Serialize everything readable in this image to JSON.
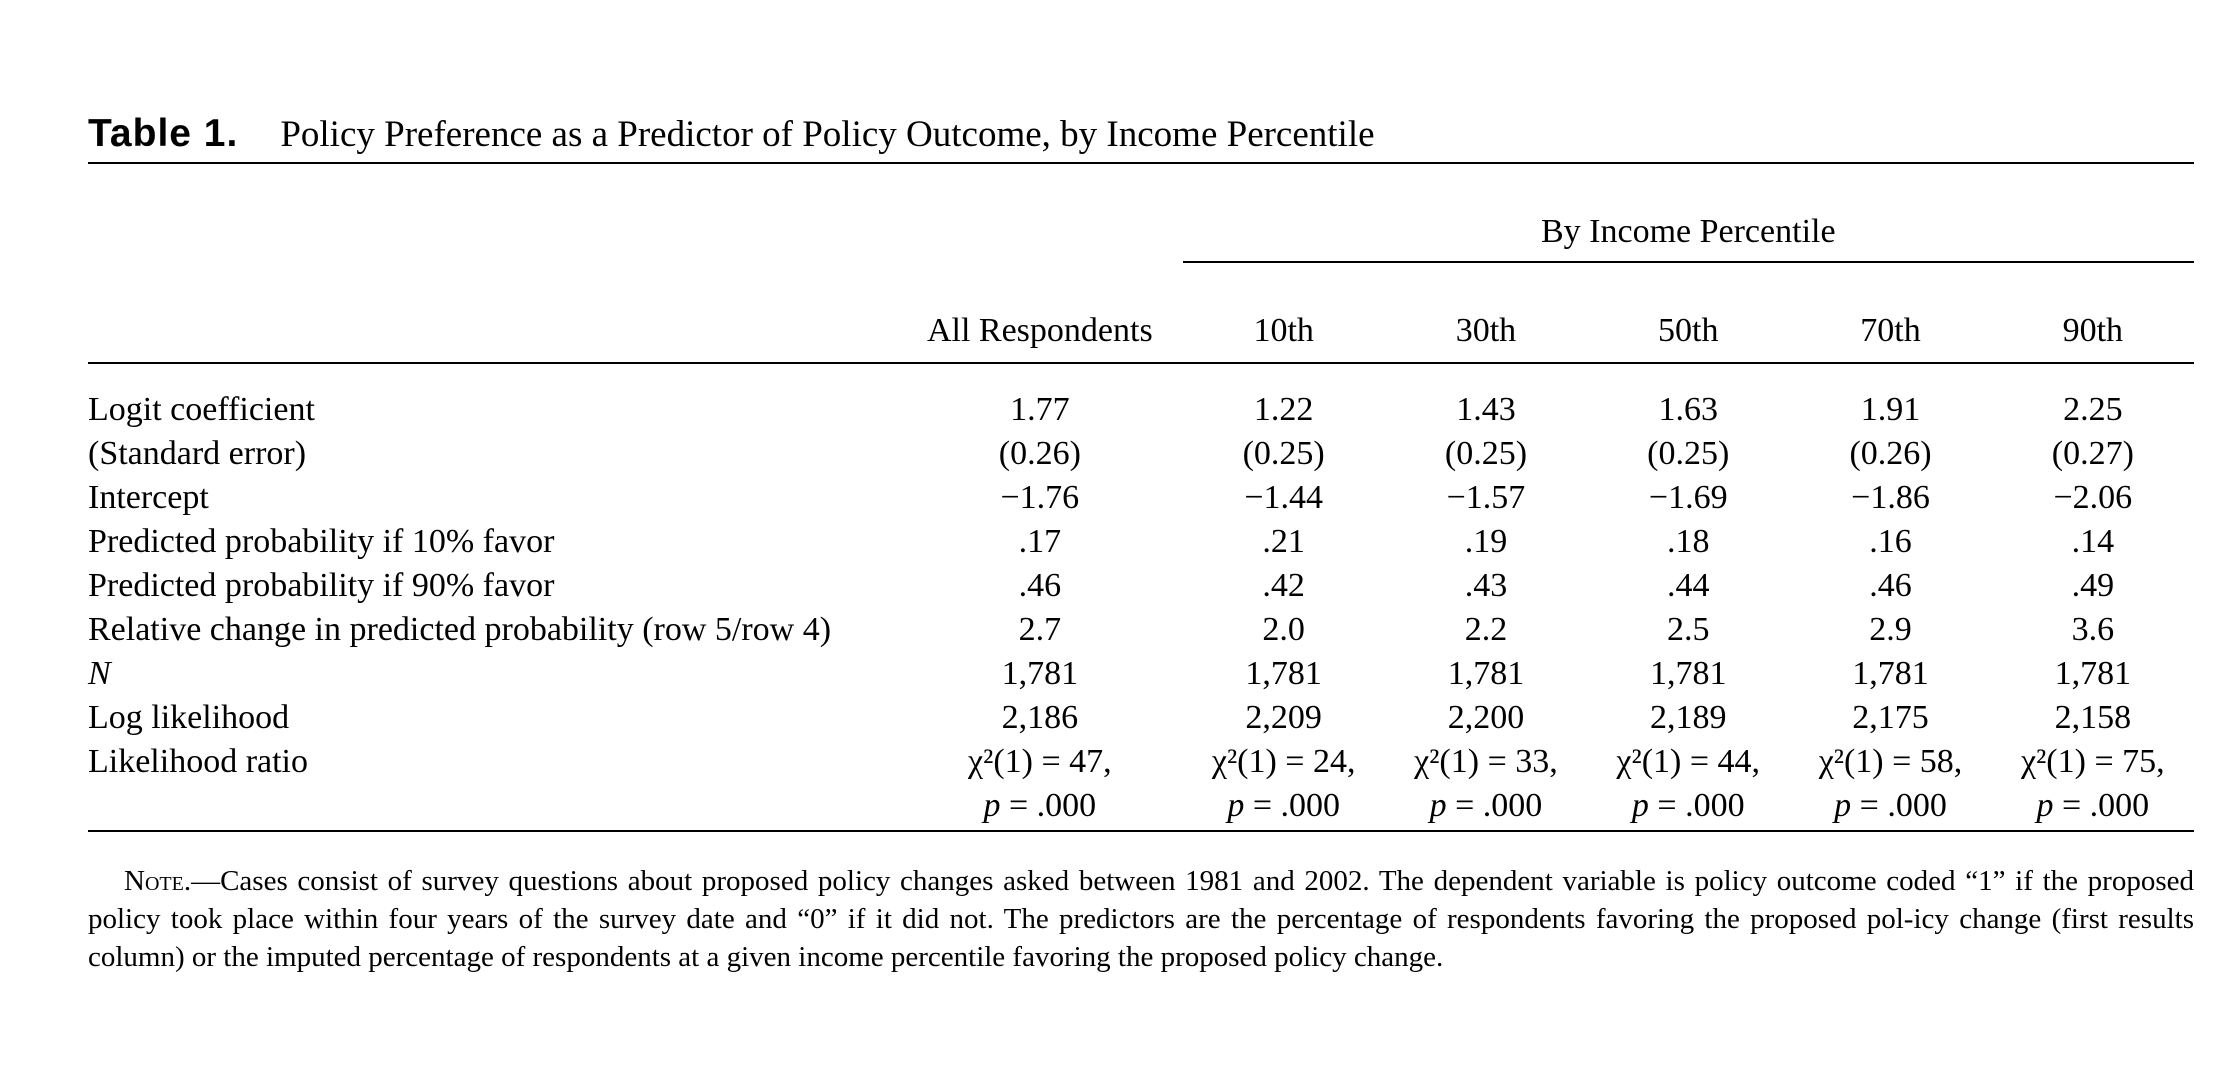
{
  "caption": {
    "label": "Table 1.",
    "title": "Policy Preference as a Predictor of Policy Outcome, by Income Percentile"
  },
  "header": {
    "group_label": "By Income Percentile",
    "columns": [
      "All Respondents",
      "10th",
      "30th",
      "50th",
      "70th",
      "90th"
    ]
  },
  "rows": [
    {
      "label": "Logit coefficient",
      "values": [
        "1.77",
        "1.22",
        "1.43",
        "1.63",
        "1.91",
        "2.25"
      ]
    },
    {
      "label": "(Standard error)",
      "values": [
        "(0.26)",
        "(0.25)",
        "(0.25)",
        "(0.25)",
        "(0.26)",
        "(0.27)"
      ]
    },
    {
      "label": "Intercept",
      "values": [
        "−1.76",
        "−1.44",
        "−1.57",
        "−1.69",
        "−1.86",
        "−2.06"
      ]
    },
    {
      "label": "Predicted probability if 10% favor",
      "values": [
        ".17",
        ".21",
        ".19",
        ".18",
        ".16",
        ".14"
      ]
    },
    {
      "label": "Predicted probability if 90% favor",
      "values": [
        ".46",
        ".42",
        ".43",
        ".44",
        ".46",
        ".49"
      ]
    },
    {
      "label": "Relative change in predicted probability (row 5/row 4)",
      "values": [
        "2.7",
        "2.0",
        "2.2",
        "2.5",
        "2.9",
        "3.6"
      ]
    },
    {
      "label": "N",
      "values": [
        "1,781",
        "1,781",
        "1,781",
        "1,781",
        "1,781",
        "1,781"
      ]
    },
    {
      "label": "Log likelihood",
      "values": [
        "2,186",
        "2,209",
        "2,200",
        "2,189",
        "2,175",
        "2,158"
      ]
    }
  ],
  "likelihood_ratio": {
    "label": "Likelihood ratio",
    "p_symbol": "p",
    "p_value": " = .000",
    "values": [
      "χ²(1) = 47,",
      "χ²(1) = 24,",
      "χ²(1) = 33,",
      "χ²(1) = 44,",
      "χ²(1) = 58,",
      "χ²(1) = 75,"
    ]
  },
  "note": {
    "head": "Note.—",
    "text": "Cases consist of survey questions about proposed policy changes asked between 1981 and 2002. The dependent variable is policy outcome coded “1” if the proposed policy took place within four years of the survey date and “0” if it did not. The predictors are the percentage of respondents favoring the proposed pol-icy change (first results column) or the imputed percentage of respondents at a given income percentile favoring the proposed policy change."
  }
}
